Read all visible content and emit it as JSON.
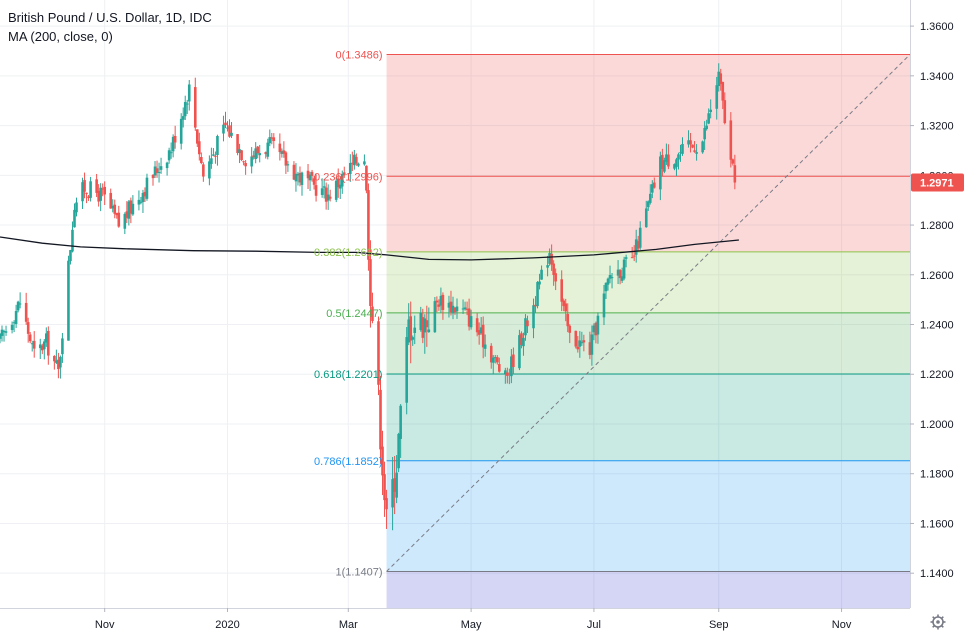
{
  "legend": {
    "title": "British Pound / U.S. Dollar, 1D, IDC",
    "indicator": "MA (200, close, 0)"
  },
  "last_price": {
    "label": "1.2971",
    "value": 1.2971,
    "color": "#ef5350"
  },
  "icons": {
    "settings": "gear-icon"
  },
  "chart_data": {
    "type": "candlestick",
    "title": "British Pound / U.S. Dollar, 1D, IDC",
    "y_ticks": [
      "1.3600",
      "1.3400",
      "1.3200",
      "1.3000",
      "1.2800",
      "1.2600",
      "1.2400",
      "1.2200",
      "1.2000",
      "1.1800",
      "1.1600",
      "1.1400"
    ],
    "ylim": [
      1.126,
      1.3705
    ],
    "x_ticks": [
      "Nov",
      "2020",
      "Mar",
      "May",
      "Jul",
      "Sep",
      "Nov"
    ],
    "x_tick_dates": [
      "2019-11-01",
      "2020-01-01",
      "2020-03-01",
      "2020-05-01",
      "2020-07-01",
      "2020-09-01",
      "2020-11-01"
    ],
    "xlim": [
      "2019-09-10",
      "2020-12-05"
    ],
    "grid": true,
    "colors": {
      "up": "#26a69a",
      "down": "#ef5350",
      "ma": "#131722"
    },
    "series": [
      {
        "name": "MA (200, close, 0)",
        "type": "line",
        "points": [
          [
            "2019-09-10",
            1.2752
          ],
          [
            "2019-10-01",
            1.2727
          ],
          [
            "2019-10-20",
            1.2712
          ],
          [
            "2019-11-10",
            1.2705
          ],
          [
            "2019-12-15",
            1.2697
          ],
          [
            "2020-01-15",
            1.2695
          ],
          [
            "2020-02-15",
            1.269
          ],
          [
            "2020-03-05",
            1.269
          ],
          [
            "2020-03-20",
            1.268
          ],
          [
            "2020-04-10",
            1.2662
          ],
          [
            "2020-05-01",
            1.266
          ],
          [
            "2020-06-01",
            1.2668
          ],
          [
            "2020-07-01",
            1.268
          ],
          [
            "2020-08-01",
            1.2702
          ],
          [
            "2020-08-20",
            1.2722
          ],
          [
            "2020-09-11",
            1.274
          ]
        ]
      }
    ],
    "anchor_candles": [
      [
        "2019-09-10",
        1.2333
      ],
      [
        "2019-09-20",
        1.2492
      ],
      [
        "2019-09-27",
        1.228
      ],
      [
        "2019-10-03",
        1.233
      ],
      [
        "2019-10-09",
        1.2209
      ],
      [
        "2019-10-17",
        1.289
      ],
      [
        "2019-10-22",
        1.295
      ],
      [
        "2019-10-31",
        1.292
      ],
      [
        "2019-11-08",
        1.28
      ],
      [
        "2019-11-20",
        1.294
      ],
      [
        "2019-12-04",
        1.311
      ],
      [
        "2019-12-13",
        1.335
      ],
      [
        "2019-12-20",
        1.3
      ],
      [
        "2019-12-31",
        1.32
      ],
      [
        "2020-01-10",
        1.307
      ],
      [
        "2020-01-22",
        1.312
      ],
      [
        "2020-02-05",
        1.3
      ],
      [
        "2020-02-20",
        1.292
      ],
      [
        "2020-03-09",
        1.31
      ],
      [
        "2020-03-12",
        1.255
      ],
      [
        "2020-03-16",
        1.21
      ],
      [
        "2020-03-20",
        1.16
      ],
      [
        "2020-03-25",
        1.185
      ],
      [
        "2020-03-31",
        1.24
      ],
      [
        "2020-04-09",
        1.242
      ],
      [
        "2020-04-15",
        1.25
      ],
      [
        "2020-04-28",
        1.245
      ],
      [
        "2020-05-07",
        1.234
      ],
      [
        "2020-05-18",
        1.218
      ],
      [
        "2020-06-01",
        1.248
      ],
      [
        "2020-06-09",
        1.27
      ],
      [
        "2020-06-19",
        1.235
      ],
      [
        "2020-06-29",
        1.23
      ],
      [
        "2020-07-09",
        1.26
      ],
      [
        "2020-07-20",
        1.265
      ],
      [
        "2020-08-03",
        1.305
      ],
      [
        "2020-08-13",
        1.309
      ],
      [
        "2020-08-24",
        1.314
      ],
      [
        "2020-09-01",
        1.34
      ],
      [
        "2020-09-07",
        1.305
      ],
      [
        "2020-09-09",
        1.2971
      ]
    ],
    "fibonacci": {
      "colors": [
        "#ef5350",
        "#ef5350",
        "#8bc34a",
        "#4caf50",
        "#089981",
        "#2196f3",
        "#787b86",
        "#3f3fd6"
      ],
      "levels": [
        {
          "label": "0(1.3486)",
          "value": 1.3486
        },
        {
          "label": "0.236(1.2996)",
          "value": 1.2996
        },
        {
          "label": "0.382(1.2692)",
          "value": 1.2692
        },
        {
          "label": "0.5(1.2447)",
          "value": 1.2447
        },
        {
          "label": "0.618(1.2201)",
          "value": 1.2201
        },
        {
          "label": "0.786(1.1852)",
          "value": 1.1852
        },
        {
          "label": "1(1.1407)",
          "value": 1.1407
        }
      ],
      "start": [
        "2020-03-20",
        1.1407
      ],
      "end": [
        "2020-12-05",
        1.3486
      ]
    }
  }
}
